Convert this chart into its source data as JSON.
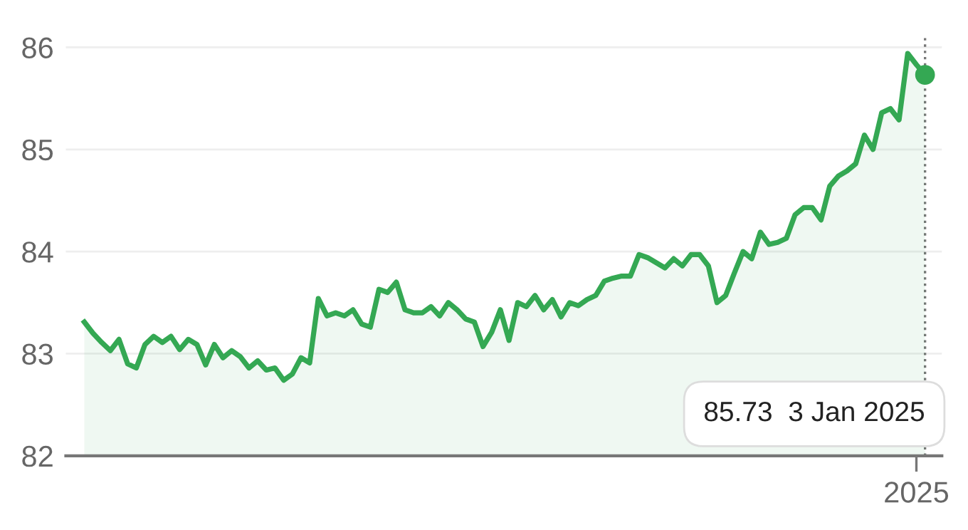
{
  "chart_data": {
    "type": "area",
    "categories": [
      null,
      null,
      null,
      null,
      null,
      null,
      null,
      null,
      null,
      null,
      null,
      null,
      null,
      null,
      null,
      null,
      null,
      null,
      null,
      null,
      null,
      null,
      null,
      null,
      null,
      null,
      null,
      null,
      null,
      null,
      null,
      null,
      null,
      null,
      null,
      null,
      null,
      null,
      null,
      null,
      null,
      null,
      null,
      null,
      null,
      null,
      null,
      null,
      null,
      null,
      null,
      null,
      null,
      null,
      null,
      null,
      null,
      null,
      null,
      null,
      null,
      null,
      null,
      null,
      null,
      null,
      null,
      null,
      null,
      null,
      null,
      null,
      null,
      null,
      null,
      null,
      null,
      null,
      null,
      null,
      null,
      null,
      null,
      null,
      null,
      null,
      null,
      null,
      null,
      null,
      null,
      null,
      null,
      null,
      null,
      null,
      null,
      null
    ],
    "series": [
      {
        "color": "#34a853",
        "values": [
          83.31,
          83.2,
          83.11,
          83.03,
          83.14,
          82.9,
          82.86,
          83.09,
          83.17,
          83.11,
          83.17,
          83.04,
          83.14,
          83.09,
          82.89,
          83.09,
          82.96,
          83.03,
          82.97,
          82.86,
          82.93,
          82.84,
          82.86,
          82.74,
          82.8,
          82.96,
          82.91,
          83.54,
          83.37,
          83.4,
          83.37,
          83.43,
          83.29,
          83.26,
          83.63,
          83.6,
          83.7,
          83.43,
          83.4,
          83.4,
          83.46,
          83.37,
          83.5,
          83.43,
          83.34,
          83.31,
          83.07,
          83.21,
          83.43,
          83.13,
          83.5,
          83.46,
          83.57,
          83.43,
          83.53,
          83.36,
          83.5,
          83.47,
          83.53,
          83.57,
          83.71,
          83.74,
          83.76,
          83.76,
          83.97,
          83.94,
          83.89,
          83.84,
          83.93,
          83.86,
          83.97,
          83.97,
          83.86,
          83.5,
          83.57,
          83.79,
          84.0,
          83.93,
          84.19,
          84.07,
          84.09,
          84.13,
          84.36,
          84.43,
          84.43,
          84.31,
          84.64,
          84.74,
          84.79,
          84.86,
          85.14,
          85.0,
          85.36,
          85.4,
          85.29,
          85.94,
          85.83,
          85.73
        ]
      }
    ],
    "ylim": [
      82,
      86.1
    ],
    "yticks": [
      82,
      83,
      84,
      85,
      86
    ],
    "grid": "y",
    "annotations": [
      "85.73  3 Jan 2025",
      "2025"
    ]
  }
}
